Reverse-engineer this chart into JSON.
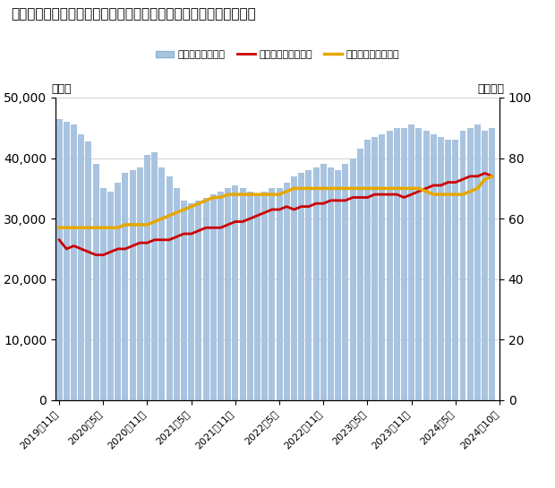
{
  "title": "首都圏の中古マンション在庫件数、成約㎡単価、在庫㎡単価の推移",
  "x_labels": [
    "2019年11月",
    "2020年5月",
    "2020年11月",
    "2021年5月",
    "2021年11月",
    "2022年5月",
    "2022年11月",
    "2023年5月",
    "2023年11月",
    "2024年5月",
    "2024年10月"
  ],
  "inventory": [
    46500,
    46000,
    45500,
    44000,
    42700,
    39000,
    35000,
    34500,
    36000,
    37500,
    38000,
    38500,
    40500,
    41000,
    38500,
    37000,
    35000,
    33000,
    32500,
    33000,
    33500,
    34000,
    34500,
    35000,
    35500,
    35000,
    34500,
    34000,
    34500,
    35000,
    35000,
    36000,
    37000,
    37500,
    38000,
    38500,
    39000,
    38500,
    38000,
    39000,
    40000,
    41500,
    43000,
    43500,
    44000,
    44500,
    45000,
    45000,
    45500,
    45000,
    44500,
    44000,
    43500,
    43000,
    43000,
    44500,
    45000,
    45500,
    44500,
    45000
  ],
  "contract_price": [
    53,
    50,
    51,
    50,
    49,
    48,
    48,
    49,
    50,
    50,
    51,
    52,
    52,
    53,
    53,
    53,
    54,
    55,
    55,
    56,
    57,
    57,
    57,
    58,
    59,
    59,
    60,
    61,
    62,
    63,
    63,
    64,
    63,
    64,
    64,
    65,
    65,
    66,
    66,
    66,
    67,
    67,
    67,
    68,
    68,
    68,
    68,
    67,
    68,
    69,
    70,
    71,
    71,
    72,
    72,
    73,
    74,
    74,
    75,
    74
  ],
  "inventory_price": [
    57,
    57,
    57,
    57,
    57,
    57,
    57,
    57,
    57,
    58,
    58,
    58,
    58,
    59,
    60,
    61,
    62,
    63,
    64,
    65,
    66,
    67,
    67,
    68,
    68,
    68,
    68,
    68,
    68,
    68,
    68,
    69,
    70,
    70,
    70,
    70,
    70,
    70,
    70,
    70,
    70,
    70,
    70,
    70,
    70,
    70,
    70,
    70,
    70,
    70,
    69,
    68,
    68,
    68,
    68,
    68,
    69,
    70,
    73,
    74
  ],
  "bar_color": "#a8c4e0",
  "contract_color": "#cc0000",
  "inventory_price_color": "#e6a800",
  "left_label": "（件）",
  "right_label": "（万円）",
  "left_ylim": [
    0,
    50000
  ],
  "right_ylim": [
    0,
    100
  ],
  "left_yticks": [
    0,
    10000,
    20000,
    30000,
    40000,
    50000
  ],
  "right_yticks": [
    0,
    20,
    40,
    60,
    80,
    100
  ],
  "legend_labels": [
    "在庫件数（左軸）",
    "成約㎡単価（右軸）",
    "在庫㎡単価（右軸）"
  ],
  "tick_label_indices": [
    0,
    6,
    12,
    18,
    24,
    30,
    36,
    42,
    48,
    54,
    60
  ]
}
